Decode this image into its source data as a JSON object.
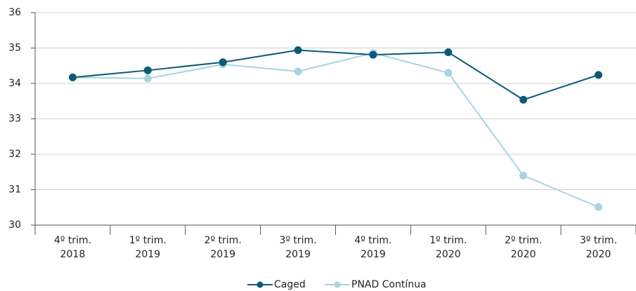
{
  "chart_data": {
    "type": "line",
    "categories": [
      "4º trim. 2018",
      "1º trim. 2019",
      "2º trim. 2019",
      "3º trim. 2019",
      "4º trim. 2019",
      "1º trim. 2020",
      "2º trim. 2020",
      "3º trim. 2020"
    ],
    "series": [
      {
        "name": "Caged",
        "color": "#0b5a78",
        "values": [
          34.17,
          34.37,
          34.6,
          34.94,
          34.81,
          34.88,
          33.54,
          34.24
        ]
      },
      {
        "name": "PNAD Contínua",
        "color": "#a8d4e0",
        "values": [
          34.17,
          34.14,
          34.54,
          34.34,
          34.86,
          34.3,
          31.4,
          30.51
        ]
      }
    ],
    "ylim": [
      30,
      36
    ],
    "yticks": [
      30,
      31,
      32,
      33,
      34,
      35,
      36
    ],
    "grid": true,
    "legend": "bottom"
  }
}
